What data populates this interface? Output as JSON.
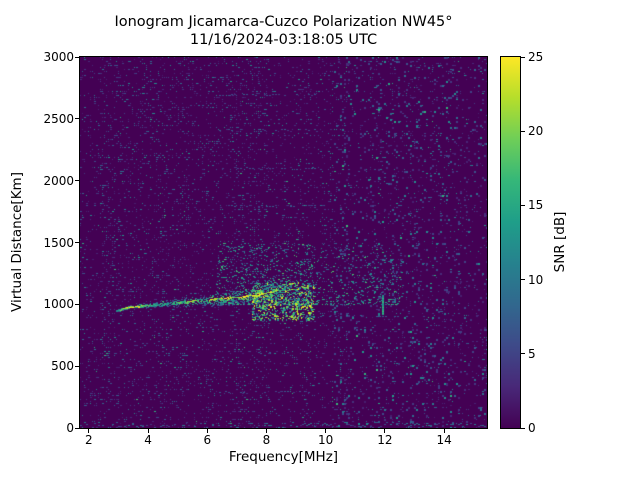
{
  "chart_data": {
    "type": "heatmap",
    "title_line1": "Ionogram Jicamarca-Cuzco Polarization NW45°",
    "title_line2": "11/16/2024-03:18:05 UTC",
    "xlabel": "Frequency[MHz]",
    "ylabel": "Virtual Distance[Km]",
    "xlim": [
      1.7,
      15.45
    ],
    "ylim": [
      0,
      3000
    ],
    "xticks": [
      2,
      4,
      6,
      8,
      10,
      12,
      14
    ],
    "yticks": [
      0,
      500,
      1000,
      1500,
      2000,
      2500,
      3000
    ],
    "colormap": "viridis",
    "colorbar": {
      "label": "SNR [dB]",
      "ticks": [
        0,
        5,
        10,
        15,
        20,
        25
      ],
      "min": 0,
      "max": 25
    },
    "colors": {
      "figure_background": "#ffffff",
      "plot_background": "#440154",
      "axes": "#000000",
      "viridis_stops": [
        "#440154",
        "#482878",
        "#3e4a89",
        "#31688e",
        "#26828e",
        "#1f9e89",
        "#35b779",
        "#6ece58",
        "#b5de2b",
        "#fde725"
      ]
    },
    "background_snr_db": 0,
    "noise_speckle": {
      "density": 0.17,
      "snr_range_db": [
        2,
        17
      ]
    },
    "echo_trace": {
      "description": "F-layer echo trace near 1000 km rising with frequency",
      "points_freq_vd_snr": [
        [
          2.95,
          950,
          13
        ],
        [
          3.05,
          960,
          17
        ],
        [
          3.2,
          970,
          21
        ],
        [
          3.35,
          978,
          24
        ],
        [
          3.5,
          983,
          24
        ],
        [
          3.65,
          987,
          22
        ],
        [
          3.8,
          990,
          19
        ],
        [
          3.95,
          993,
          17
        ],
        [
          4.1,
          996,
          15
        ],
        [
          4.25,
          1000,
          14
        ],
        [
          4.4,
          1003,
          16
        ],
        [
          4.55,
          1006,
          14
        ],
        [
          4.7,
          1008,
          13
        ],
        [
          4.85,
          1012,
          16
        ],
        [
          5.0,
          1015,
          18
        ],
        [
          5.15,
          1018,
          15
        ],
        [
          5.3,
          1022,
          20
        ],
        [
          5.45,
          1026,
          23
        ],
        [
          5.6,
          1030,
          19
        ],
        [
          5.75,
          1032,
          16
        ],
        [
          5.9,
          1035,
          14
        ],
        [
          6.05,
          1038,
          21
        ],
        [
          6.2,
          1042,
          24
        ],
        [
          6.35,
          1045,
          18
        ],
        [
          6.5,
          1048,
          22
        ],
        [
          6.65,
          1052,
          25
        ],
        [
          6.8,
          1056,
          20
        ],
        [
          6.95,
          1060,
          17
        ],
        [
          7.1,
          1063,
          23
        ],
        [
          7.25,
          1068,
          25
        ],
        [
          7.4,
          1072,
          21
        ],
        [
          7.55,
          1078,
          24
        ],
        [
          7.7,
          1083,
          25
        ],
        [
          7.85,
          1090,
          22
        ],
        [
          8.0,
          1096,
          19
        ],
        [
          8.15,
          1103,
          23
        ],
        [
          8.3,
          1110,
          18
        ],
        [
          8.45,
          1118,
          15
        ],
        [
          8.6,
          1125,
          13
        ]
      ],
      "spread_km_start": 10,
      "spread_km_end": 90
    },
    "spread_f_scatter": {
      "description": "diffuse spread-F scatter cloud above the trace",
      "freq_range": [
        6.3,
        12.6
      ],
      "vd_range": [
        1000,
        1500
      ],
      "snr_range_db": [
        5,
        18
      ]
    },
    "dense_cloud": {
      "freq_range": [
        7.5,
        9.6
      ],
      "vd_range": [
        880,
        1180
      ],
      "snr_range_db": [
        8,
        24
      ]
    },
    "interference_lines": {
      "description": "faint dotted horizontal interference stripes",
      "freq_range": [
        6.4,
        9.6
      ],
      "vd_values": [
        300,
        620,
        1800,
        2100,
        2420,
        2700
      ],
      "snr_db": 6
    },
    "vertical_echo": {
      "freq": 11.9,
      "vd_range": [
        940,
        1090
      ],
      "snr_db": 14
    },
    "horizontal_echo": {
      "vd": 905,
      "freq_range": [
        8.5,
        13.4
      ],
      "snr_db": 6
    },
    "bottom_band": {
      "vd_range": [
        0,
        40
      ],
      "snr_range_db": [
        4,
        12
      ]
    }
  }
}
